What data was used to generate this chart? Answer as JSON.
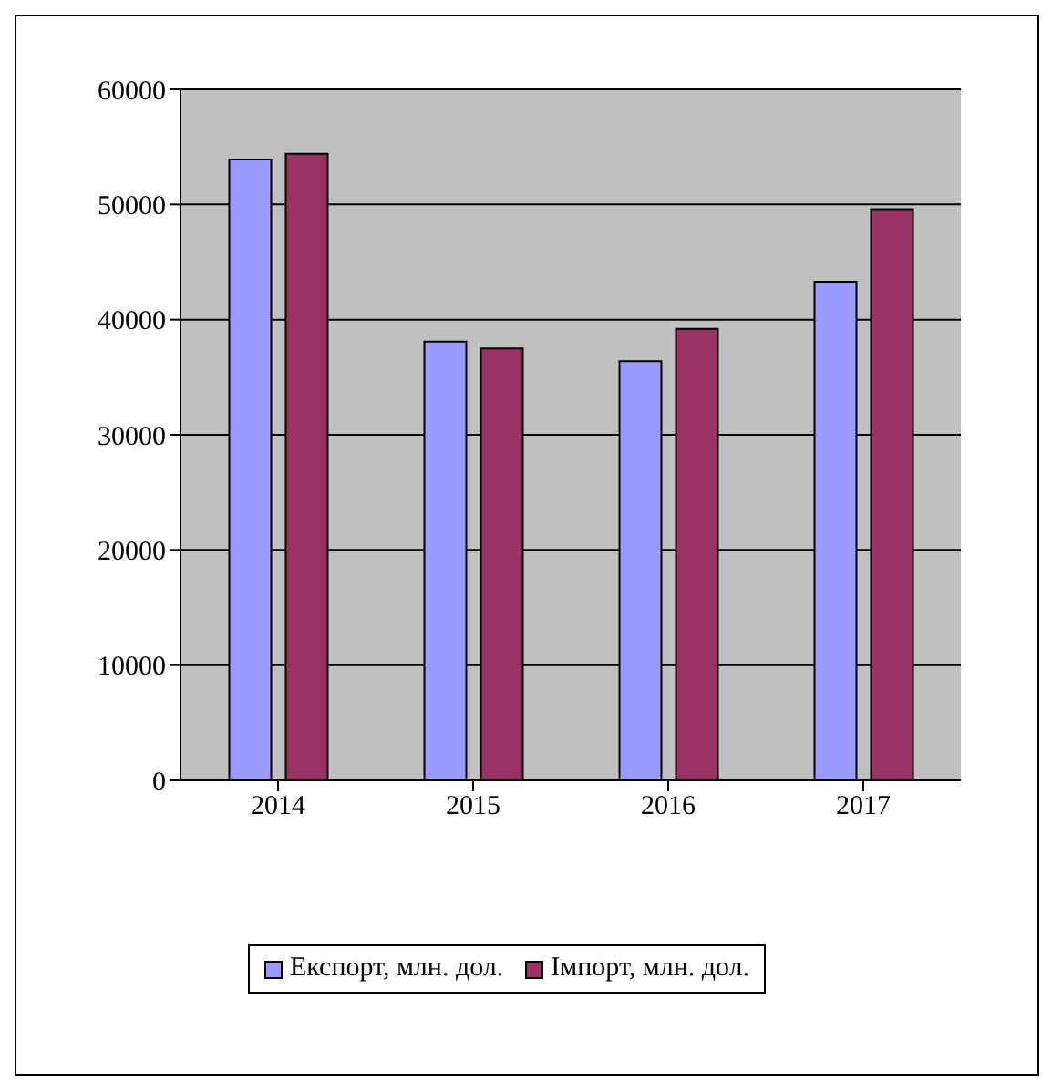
{
  "chart_data": {
    "type": "bar",
    "categories": [
      "2014",
      "2015",
      "2016",
      "2017"
    ],
    "series": [
      {
        "name": "Експорт, млн. дол.",
        "color": "#9999ff",
        "values": [
          53900,
          38100,
          36400,
          43300
        ]
      },
      {
        "name": "Імпорт, млн. дол.",
        "color": "#993366",
        "values": [
          54400,
          37500,
          39200,
          49600
        ]
      }
    ],
    "ylim": [
      0,
      60000
    ],
    "yticks": [
      0,
      10000,
      20000,
      30000,
      40000,
      50000,
      60000
    ],
    "grid": "y",
    "legend": "bottom"
  }
}
